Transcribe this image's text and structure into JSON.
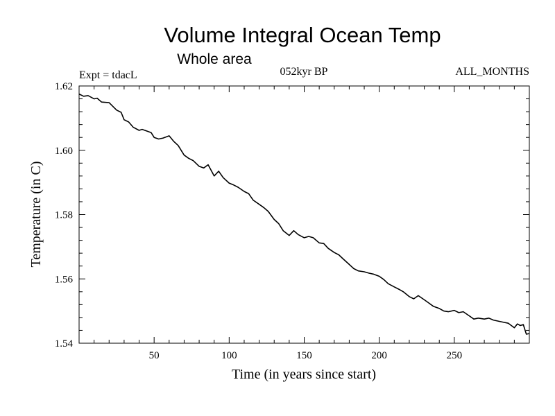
{
  "chart_data": {
    "type": "line",
    "title": "Volume Integral Ocean Temp",
    "subtitle": "Whole area",
    "experiment_label": "Expt = tdacL",
    "period_label": "052kyr BP",
    "months_label": "ALL_MONTHS",
    "xlabel": "Time (in years since start)",
    "ylabel": "Temperature (in C)",
    "xlim": [
      0,
      300
    ],
    "ylim": [
      1.54,
      1.62
    ],
    "x_ticks": [
      50,
      100,
      150,
      200,
      250
    ],
    "x_tick_labels": [
      "50",
      "100",
      "150",
      "200",
      "250"
    ],
    "y_ticks": [
      1.54,
      1.56,
      1.58,
      1.6,
      1.62
    ],
    "y_tick_labels": [
      "1.54",
      "1.56",
      "1.58",
      "1.60",
      "1.62"
    ],
    "series": [
      {
        "name": "tdacL",
        "x": [
          0,
          3,
          6,
          10,
          12,
          15,
          20,
          25,
          28,
          30,
          33,
          36,
          40,
          42,
          45,
          48,
          50,
          53,
          56,
          60,
          63,
          66,
          70,
          73,
          76,
          80,
          83,
          86,
          90,
          93,
          96,
          100,
          103,
          106,
          110,
          113,
          116,
          120,
          123,
          126,
          130,
          133,
          136,
          140,
          143,
          146,
          150,
          153,
          156,
          160,
          163,
          166,
          170,
          173,
          176,
          180,
          183,
          186,
          190,
          193,
          196,
          200,
          203,
          206,
          210,
          213,
          216,
          220,
          223,
          226,
          230,
          233,
          236,
          240,
          243,
          246,
          250,
          253,
          256,
          260,
          263,
          266,
          270,
          273,
          276,
          280,
          283,
          286,
          288,
          290,
          292,
          294,
          296,
          298,
          300
        ],
        "y": [
          1.6175,
          1.6168,
          1.617,
          1.616,
          1.6162,
          1.615,
          1.6148,
          1.6125,
          1.6118,
          1.6095,
          1.6088,
          1.6072,
          1.6062,
          1.6065,
          1.606,
          1.6055,
          1.604,
          1.6035,
          1.6038,
          1.6045,
          1.6028,
          1.6015,
          1.5985,
          1.5975,
          1.5968,
          1.595,
          1.5945,
          1.5955,
          1.592,
          1.5935,
          1.5915,
          1.5898,
          1.5892,
          1.5885,
          1.5872,
          1.5865,
          1.5845,
          1.5832,
          1.5822,
          1.581,
          1.5785,
          1.5772,
          1.575,
          1.5735,
          1.575,
          1.5738,
          1.5728,
          1.5732,
          1.5728,
          1.5712,
          1.571,
          1.5695,
          1.5682,
          1.5675,
          1.5662,
          1.5645,
          1.5632,
          1.5625,
          1.5622,
          1.5618,
          1.5615,
          1.5608,
          1.5598,
          1.5585,
          1.5575,
          1.5568,
          1.556,
          1.5545,
          1.5538,
          1.5548,
          1.5535,
          1.5525,
          1.5515,
          1.5508,
          1.55,
          1.5498,
          1.5502,
          1.5495,
          1.5498,
          1.5485,
          1.5475,
          1.5478,
          1.5475,
          1.5478,
          1.5472,
          1.5468,
          1.5465,
          1.5462,
          1.5455,
          1.5448,
          1.546,
          1.5455,
          1.5458,
          1.5428,
          1.543
        ]
      }
    ]
  }
}
